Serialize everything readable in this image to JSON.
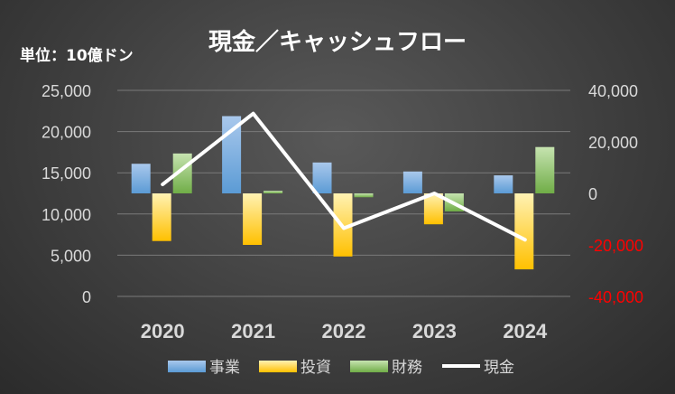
{
  "title": "現金／キャッシュフロー",
  "unit_label": "単位：10億ドン",
  "colors": {
    "operating": "#5b9bd5",
    "investing": "#ffc000",
    "financing": "#70ad47",
    "cash_line": "#ffffff",
    "negative_tick": "#ff0000",
    "axis_text": "#d9d9d9"
  },
  "chart_data": {
    "type": "bar",
    "title": "現金／キャッシュフロー",
    "categories": [
      "2020",
      "2021",
      "2022",
      "2023",
      "2024"
    ],
    "series": [
      {
        "name": "事業",
        "kind": "bar",
        "axis": "right",
        "values": [
          11500,
          30000,
          12000,
          8500,
          7000
        ]
      },
      {
        "name": "投資",
        "kind": "bar",
        "axis": "right",
        "values": [
          -18500,
          -20000,
          -24500,
          -12000,
          -29500
        ]
      },
      {
        "name": "財務",
        "kind": "bar",
        "axis": "right",
        "values": [
          15500,
          1000,
          -1500,
          -7000,
          18000
        ]
      },
      {
        "name": "現金",
        "kind": "line",
        "axis": "right",
        "values": [
          3500,
          31000,
          -13500,
          0,
          -18000
        ]
      }
    ],
    "y_left": {
      "ticks": [
        "0",
        "5,000",
        "10,000",
        "15,000",
        "20,000",
        "25,000"
      ],
      "range": [
        0,
        25000
      ]
    },
    "y_right": {
      "ticks": [
        "-40,000",
        "-20,000",
        "0",
        "20,000",
        "40,000"
      ],
      "range": [
        -40000,
        40000
      ]
    },
    "grid": true,
    "legend_position": "bottom"
  }
}
